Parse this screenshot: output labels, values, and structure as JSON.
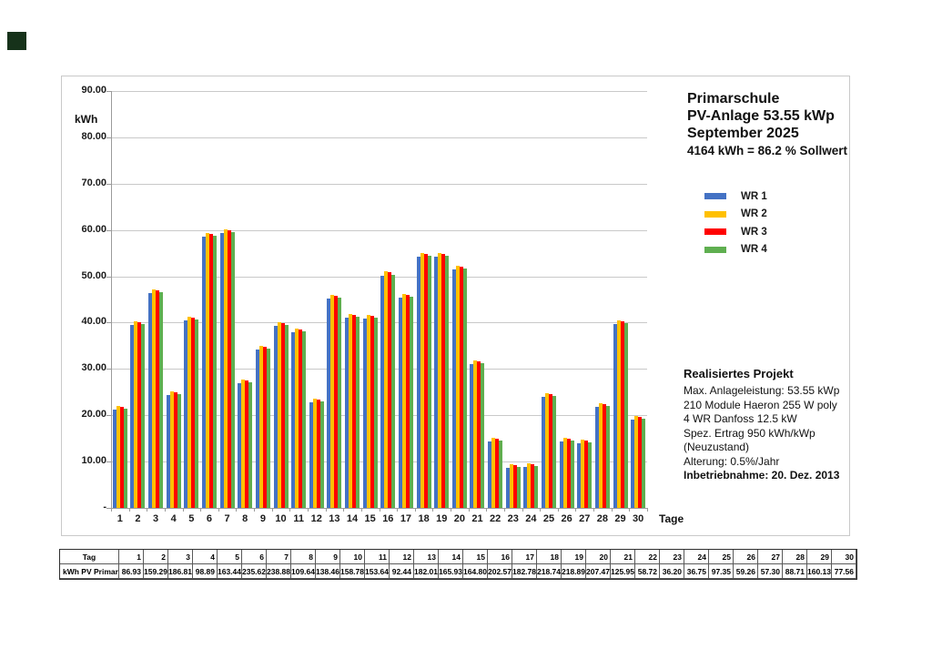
{
  "page": {
    "background": "#ffffff"
  },
  "decor": {
    "corner_mark_color": "#16321a"
  },
  "chart": {
    "frame_border_color": "#c9c9c9",
    "y_axis": {
      "unit": "kWh",
      "ticks": [
        {
          "value": 90,
          "label": "90.00"
        },
        {
          "value": 80,
          "label": "80.00"
        },
        {
          "value": 70,
          "label": "70.00"
        },
        {
          "value": 60,
          "label": "60.00"
        },
        {
          "value": 50,
          "label": "50.00"
        },
        {
          "value": 40,
          "label": "40.00"
        },
        {
          "value": 30,
          "label": "30.00"
        },
        {
          "value": 20,
          "label": "20.00"
        },
        {
          "value": 10,
          "label": "10.00"
        },
        {
          "value": 0,
          "label": "-"
        }
      ]
    },
    "x_axis": {
      "title": "Tage"
    },
    "titles": {
      "line1": "Primarschule",
      "line2": "PV-Anlage 53.55 kWp",
      "line3": "September 2025",
      "line4": "4164 kWh = 86.2 % Sollwert"
    },
    "legend": [
      {
        "name": "WR 1",
        "color": "#4472C4"
      },
      {
        "name": "WR 2",
        "color": "#FFC000"
      },
      {
        "name": "WR 3",
        "color": "#FF0000"
      },
      {
        "name": "WR 4",
        "color": "#5FAF50"
      }
    ],
    "project": {
      "heading": "Realisiertes Projekt",
      "lines": [
        "Max. Anlageleistung: 53.55 kWp",
        "210 Module Haeron 255 W poly",
        "4 WR Danfoss 12.5 kW",
        "Spez. Ertrag 950 kWh/kWp",
        "(Neuzustand)",
        "Alterung: 0.5%/Jahr"
      ],
      "last_line": "Inbetriebnahme: 20. Dez. 2013"
    }
  },
  "chart_data": {
    "type": "bar",
    "title": "Primarschule PV-Anlage 53.55 kWp September 2025",
    "subtitle": "4164 kWh = 86.2 % Sollwert",
    "xlabel": "Tage",
    "ylabel": "kWh",
    "ylim": [
      0,
      90
    ],
    "ytick_step": 10,
    "grid": true,
    "legend_position": "right",
    "categories": [
      "1",
      "2",
      "3",
      "4",
      "5",
      "6",
      "7",
      "8",
      "9",
      "10",
      "11",
      "12",
      "13",
      "14",
      "15",
      "16",
      "17",
      "18",
      "19",
      "20",
      "21",
      "22",
      "23",
      "24",
      "25",
      "26",
      "27",
      "28",
      "29",
      "30"
    ],
    "series": [
      {
        "name": "WR 1",
        "color": "#4472C4",
        "values": [
          21.3,
          39.4,
          46.3,
          24.3,
          40.5,
          58.5,
          59.3,
          27.0,
          34.2,
          39.3,
          38.0,
          22.7,
          45.1,
          41.1,
          40.8,
          50.2,
          45.3,
          54.3,
          54.3,
          51.5,
          31.1,
          14.3,
          8.7,
          8.8,
          23.9,
          14.4,
          13.9,
          21.8,
          39.6,
          19.0
        ]
      },
      {
        "name": "WR 2",
        "color": "#FFC000",
        "values": [
          22.1,
          40.2,
          47.1,
          25.1,
          41.3,
          59.3,
          60.1,
          27.8,
          35.0,
          40.1,
          38.8,
          23.5,
          45.9,
          41.9,
          41.6,
          51.0,
          46.1,
          55.1,
          55.1,
          52.3,
          31.9,
          15.1,
          9.5,
          9.6,
          24.7,
          15.2,
          14.7,
          22.6,
          40.4,
          19.8
        ]
      },
      {
        "name": "WR 3",
        "color": "#FF0000",
        "values": [
          21.9,
          40.0,
          46.9,
          24.9,
          41.1,
          59.1,
          59.9,
          27.6,
          34.8,
          39.9,
          38.6,
          23.3,
          45.7,
          41.7,
          41.4,
          50.8,
          45.9,
          54.9,
          54.9,
          52.1,
          31.7,
          14.9,
          9.3,
          9.4,
          24.5,
          15.0,
          14.5,
          22.4,
          40.2,
          19.6
        ]
      },
      {
        "name": "WR 4",
        "color": "#5FAF50",
        "values": [
          21.5,
          39.6,
          46.5,
          24.5,
          40.7,
          58.7,
          59.5,
          27.2,
          34.4,
          39.5,
          38.2,
          22.9,
          45.3,
          41.3,
          41.0,
          50.4,
          45.5,
          54.5,
          54.5,
          51.7,
          31.3,
          14.5,
          8.9,
          9.0,
          24.1,
          14.6,
          14.1,
          22.0,
          39.8,
          19.2
        ]
      }
    ],
    "daily_total_kwh": [
      86.93,
      159.29,
      186.81,
      98.89,
      163.44,
      235.62,
      238.88,
      109.64,
      138.46,
      158.78,
      153.64,
      92.44,
      182.01,
      165.93,
      164.8,
      202.57,
      182.78,
      218.74,
      218.89,
      207.47,
      125.95,
      58.72,
      36.2,
      36.75,
      97.35,
      59.26,
      57.3,
      88.71,
      160.13,
      77.56
    ]
  },
  "table": {
    "row1_label": "Tag",
    "row2_label": "kWh PV Primar",
    "days": [
      "1",
      "2",
      "3",
      "4",
      "5",
      "6",
      "7",
      "8",
      "9",
      "10",
      "11",
      "12",
      "13",
      "14",
      "15",
      "16",
      "17",
      "18",
      "19",
      "20",
      "21",
      "22",
      "23",
      "24",
      "25",
      "26",
      "27",
      "28",
      "29",
      "30"
    ],
    "values": [
      "86.93",
      "159.29",
      "186.81",
      "98.89",
      "163.44",
      "235.62",
      "238.88",
      "109.64",
      "138.46",
      "158.78",
      "153.64",
      "92.44",
      "182.01",
      "165.93",
      "164.80",
      "202.57",
      "182.78",
      "218.74",
      "218.89",
      "207.47",
      "125.95",
      "58.72",
      "36.20",
      "36.75",
      "97.35",
      "59.26",
      "57.30",
      "88.71",
      "160.13",
      "77.56"
    ]
  }
}
